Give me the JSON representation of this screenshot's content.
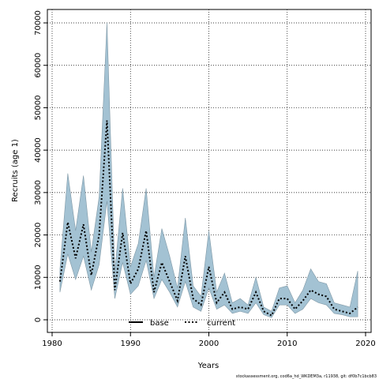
{
  "chart_data": {
    "type": "area",
    "xlabel": "Years",
    "ylabel": "Recruits (age 1)",
    "xlim": [
      1980,
      2020
    ],
    "ylim": [
      0,
      70000
    ],
    "x_ticks": [
      1980,
      1990,
      2000,
      2010,
      2020
    ],
    "y_ticks": [
      0,
      10000,
      20000,
      30000,
      40000,
      50000,
      60000,
      70000
    ],
    "grid": true,
    "legend_placement": "bottom-center",
    "legend": [
      "base",
      "current"
    ],
    "colors": {
      "band": "#a3c2d3",
      "band_edge": "#7f98a6",
      "line": "#000000"
    },
    "x": [
      1981,
      1982,
      1983,
      1984,
      1985,
      1986,
      1987,
      1988,
      1989,
      1990,
      1991,
      1992,
      1993,
      1994,
      1995,
      1996,
      1997,
      1998,
      1999,
      2000,
      2001,
      2002,
      2003,
      2004,
      2005,
      2006,
      2007,
      2008,
      2009,
      2010,
      2011,
      2012,
      2013,
      2014,
      2015,
      2016,
      2017,
      2018,
      2019
    ],
    "series": [
      {
        "name": "current",
        "values": [
          9000,
          23000,
          14500,
          22500,
          10500,
          20000,
          47000,
          7000,
          20500,
          8500,
          12000,
          21000,
          6500,
          13500,
          9000,
          4500,
          15000,
          5000,
          3500,
          12500,
          4000,
          6500,
          2500,
          3000,
          2500,
          6500,
          2000,
          1000,
          5000,
          5000,
          2500,
          4500,
          7000,
          6000,
          5500,
          2500,
          2000,
          1500,
          3000
        ]
      },
      {
        "name": "upper",
        "values": [
          12000,
          34500,
          21000,
          34000,
          16000,
          29000,
          70000,
          11500,
          31000,
          12500,
          18000,
          31000,
          10000,
          21500,
          15000,
          7500,
          24000,
          8000,
          5500,
          21000,
          6500,
          11000,
          4000,
          5000,
          3500,
          10000,
          3000,
          2000,
          7500,
          8000,
          4000,
          7000,
          12000,
          9000,
          8500,
          4000,
          3500,
          3000,
          11500
        ]
      },
      {
        "name": "lower",
        "values": [
          6500,
          15500,
          9500,
          15000,
          7000,
          13000,
          28000,
          5000,
          13500,
          6000,
          8000,
          14000,
          5000,
          9500,
          6500,
          3000,
          9000,
          3000,
          2000,
          7500,
          2500,
          3500,
          1500,
          2000,
          1500,
          4000,
          1200,
          500,
          3500,
          3500,
          1500,
          2500,
          5000,
          4000,
          3500,
          1500,
          1200,
          700,
          700
        ]
      }
    ]
  },
  "footer": "stockassessment.org, cod6a_hd_WKDEM3a, r11938, git: df0b7c1bcb83"
}
